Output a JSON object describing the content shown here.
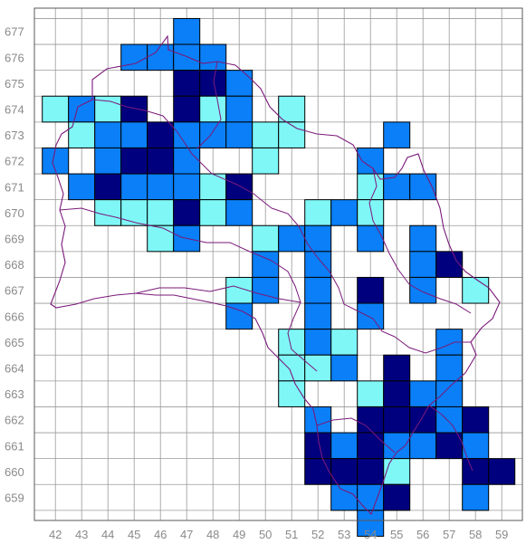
{
  "map": {
    "x_labels": [
      "42",
      "43",
      "44",
      "45",
      "46",
      "47",
      "48",
      "49",
      "50",
      "51",
      "52",
      "53",
      "54",
      "55",
      "56",
      "57",
      "58",
      "59"
    ],
    "y_labels": [
      "677",
      "676",
      "675",
      "674",
      "673",
      "672",
      "671",
      "670",
      "669",
      "668",
      "667",
      "666",
      "665",
      "664",
      "663",
      "662",
      "661",
      "660",
      "659"
    ],
    "colors": {
      "level_1": "#7ff7f7",
      "level_2": "#0a7ff7",
      "level_3": "#00007f",
      "grid": "#9a9a9a",
      "cell_border": "#000000",
      "boundary": "#7a1a7a",
      "tick_text": "#8a8a8a"
    },
    "cells": [
      {
        "x": 47,
        "y": 677,
        "level": 2
      },
      {
        "x": 45,
        "y": 676,
        "level": 2
      },
      {
        "x": 46,
        "y": 676,
        "level": 2
      },
      {
        "x": 47,
        "y": 676,
        "level": 2
      },
      {
        "x": 48,
        "y": 676,
        "level": 2
      },
      {
        "x": 47,
        "y": 675,
        "level": 3
      },
      {
        "x": 48,
        "y": 675,
        "level": 3
      },
      {
        "x": 49,
        "y": 675,
        "level": 2
      },
      {
        "x": 42,
        "y": 674,
        "level": 1
      },
      {
        "x": 43,
        "y": 674,
        "level": 2
      },
      {
        "x": 44,
        "y": 674,
        "level": 1
      },
      {
        "x": 45,
        "y": 674,
        "level": 3
      },
      {
        "x": 47,
        "y": 674,
        "level": 3
      },
      {
        "x": 48,
        "y": 674,
        "level": 1
      },
      {
        "x": 49,
        "y": 674,
        "level": 2
      },
      {
        "x": 51,
        "y": 674,
        "level": 1
      },
      {
        "x": 43,
        "y": 673,
        "level": 1
      },
      {
        "x": 44,
        "y": 673,
        "level": 2
      },
      {
        "x": 45,
        "y": 673,
        "level": 2
      },
      {
        "x": 46,
        "y": 673,
        "level": 3
      },
      {
        "x": 47,
        "y": 673,
        "level": 2
      },
      {
        "x": 48,
        "y": 673,
        "level": 2
      },
      {
        "x": 49,
        "y": 673,
        "level": 2
      },
      {
        "x": 50,
        "y": 673,
        "level": 1
      },
      {
        "x": 51,
        "y": 673,
        "level": 1
      },
      {
        "x": 55,
        "y": 673,
        "level": 2
      },
      {
        "x": 42,
        "y": 672,
        "level": 2
      },
      {
        "x": 44,
        "y": 672,
        "level": 2
      },
      {
        "x": 45,
        "y": 672,
        "level": 3
      },
      {
        "x": 46,
        "y": 672,
        "level": 3
      },
      {
        "x": 47,
        "y": 672,
        "level": 2
      },
      {
        "x": 50,
        "y": 672,
        "level": 1
      },
      {
        "x": 54,
        "y": 672,
        "level": 2
      },
      {
        "x": 43,
        "y": 671,
        "level": 2
      },
      {
        "x": 44,
        "y": 671,
        "level": 3
      },
      {
        "x": 45,
        "y": 671,
        "level": 2
      },
      {
        "x": 46,
        "y": 671,
        "level": 2
      },
      {
        "x": 47,
        "y": 671,
        "level": 2
      },
      {
        "x": 48,
        "y": 671,
        "level": 1
      },
      {
        "x": 49,
        "y": 671,
        "level": 3
      },
      {
        "x": 54,
        "y": 671,
        "level": 1
      },
      {
        "x": 55,
        "y": 671,
        "level": 2
      },
      {
        "x": 56,
        "y": 671,
        "level": 2
      },
      {
        "x": 44,
        "y": 670,
        "level": 1
      },
      {
        "x": 45,
        "y": 670,
        "level": 1
      },
      {
        "x": 46,
        "y": 670,
        "level": 1
      },
      {
        "x": 47,
        "y": 670,
        "level": 3
      },
      {
        "x": 48,
        "y": 670,
        "level": 1
      },
      {
        "x": 49,
        "y": 670,
        "level": 2
      },
      {
        "x": 52,
        "y": 670,
        "level": 1
      },
      {
        "x": 53,
        "y": 670,
        "level": 2
      },
      {
        "x": 54,
        "y": 670,
        "level": 1
      },
      {
        "x": 46,
        "y": 669,
        "level": 1
      },
      {
        "x": 47,
        "y": 669,
        "level": 2
      },
      {
        "x": 50,
        "y": 669,
        "level": 1
      },
      {
        "x": 51,
        "y": 669,
        "level": 2
      },
      {
        "x": 52,
        "y": 669,
        "level": 2
      },
      {
        "x": 54,
        "y": 669,
        "level": 2
      },
      {
        "x": 56,
        "y": 669,
        "level": 2
      },
      {
        "x": 50,
        "y": 668,
        "level": 2
      },
      {
        "x": 52,
        "y": 668,
        "level": 2
      },
      {
        "x": 56,
        "y": 668,
        "level": 2
      },
      {
        "x": 57,
        "y": 668,
        "level": 3
      },
      {
        "x": 49,
        "y": 667,
        "level": 1
      },
      {
        "x": 50,
        "y": 667,
        "level": 2
      },
      {
        "x": 52,
        "y": 667,
        "level": 2
      },
      {
        "x": 54,
        "y": 667,
        "level": 3
      },
      {
        "x": 56,
        "y": 667,
        "level": 2
      },
      {
        "x": 58,
        "y": 667,
        "level": 1
      },
      {
        "x": 49,
        "y": 666,
        "level": 2
      },
      {
        "x": 52,
        "y": 666,
        "level": 2
      },
      {
        "x": 54,
        "y": 666,
        "level": 2
      },
      {
        "x": 51,
        "y": 665,
        "level": 1
      },
      {
        "x": 52,
        "y": 665,
        "level": 2
      },
      {
        "x": 53,
        "y": 665,
        "level": 1
      },
      {
        "x": 57,
        "y": 665,
        "level": 2
      },
      {
        "x": 51,
        "y": 664,
        "level": 1
      },
      {
        "x": 52,
        "y": 664,
        "level": 1
      },
      {
        "x": 53,
        "y": 664,
        "level": 2
      },
      {
        "x": 55,
        "y": 664,
        "level": 3
      },
      {
        "x": 57,
        "y": 664,
        "level": 2
      },
      {
        "x": 51,
        "y": 663,
        "level": 1
      },
      {
        "x": 54,
        "y": 663,
        "level": 1
      },
      {
        "x": 55,
        "y": 663,
        "level": 3
      },
      {
        "x": 56,
        "y": 663,
        "level": 2
      },
      {
        "x": 57,
        "y": 663,
        "level": 2
      },
      {
        "x": 52,
        "y": 662,
        "level": 2
      },
      {
        "x": 54,
        "y": 662,
        "level": 3
      },
      {
        "x": 55,
        "y": 662,
        "level": 3
      },
      {
        "x": 56,
        "y": 662,
        "level": 3
      },
      {
        "x": 57,
        "y": 662,
        "level": 2
      },
      {
        "x": 58,
        "y": 662,
        "level": 3
      },
      {
        "x": 52,
        "y": 661,
        "level": 3
      },
      {
        "x": 53,
        "y": 661,
        "level": 2
      },
      {
        "x": 54,
        "y": 661,
        "level": 3
      },
      {
        "x": 55,
        "y": 661,
        "level": 2
      },
      {
        "x": 56,
        "y": 661,
        "level": 2
      },
      {
        "x": 57,
        "y": 661,
        "level": 3
      },
      {
        "x": 58,
        "y": 661,
        "level": 2
      },
      {
        "x": 52,
        "y": 660,
        "level": 3
      },
      {
        "x": 53,
        "y": 660,
        "level": 3
      },
      {
        "x": 54,
        "y": 660,
        "level": 3
      },
      {
        "x": 55,
        "y": 660,
        "level": 1
      },
      {
        "x": 58,
        "y": 660,
        "level": 3
      },
      {
        "x": 59,
        "y": 660,
        "level": 3
      },
      {
        "x": 53,
        "y": 659,
        "level": 2
      },
      {
        "x": 54,
        "y": 659,
        "level": 2
      },
      {
        "x": 55,
        "y": 659,
        "level": 3
      },
      {
        "x": 58,
        "y": 659,
        "level": 2
      },
      {
        "x": 54,
        "y": 658,
        "level": 2
      }
    ]
  }
}
